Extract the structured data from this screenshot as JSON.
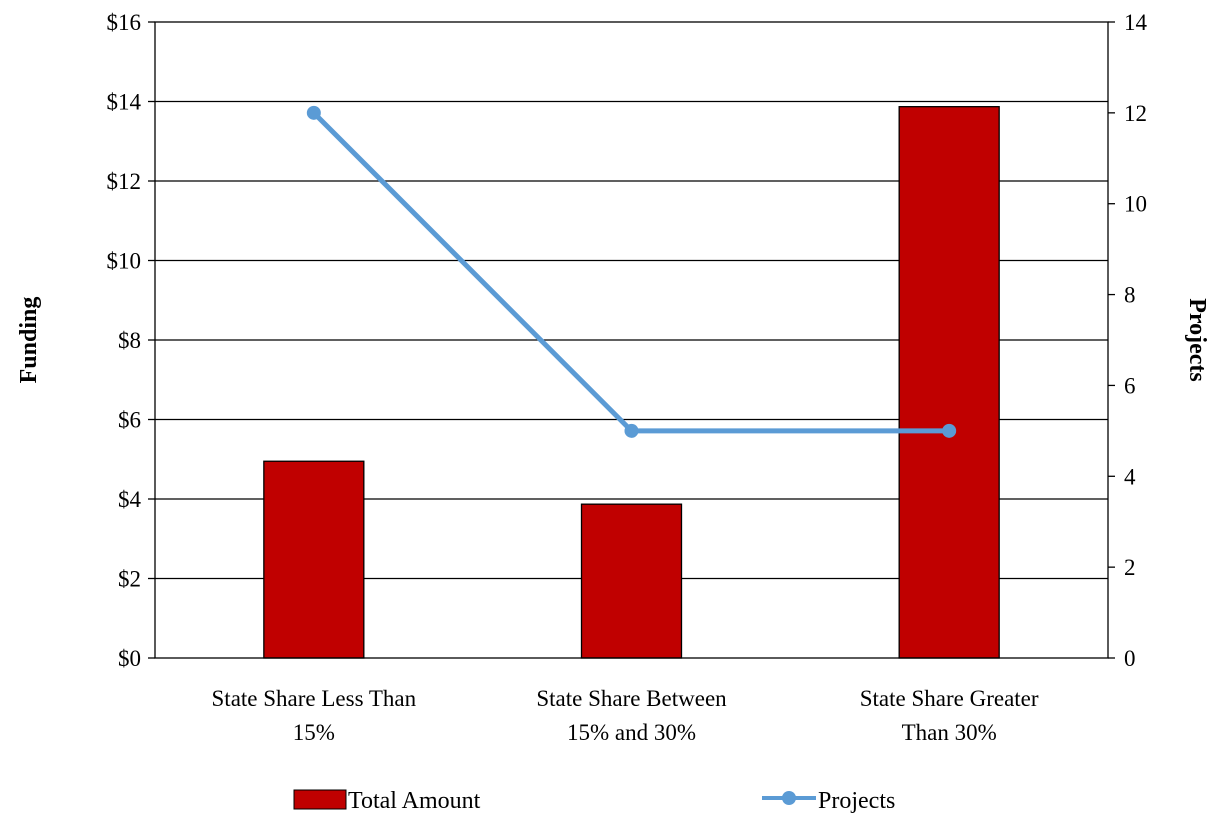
{
  "chart_data": {
    "type": "bar",
    "categories": [
      [
        "State Share Less Than",
        "15%"
      ],
      [
        "State Share Between",
        "15% and 30%"
      ],
      [
        "State Share Greater",
        "Than 30%"
      ]
    ],
    "series": [
      {
        "name": "Total Amount",
        "kind": "bar",
        "axis": "left",
        "color": "#C00000",
        "values": [
          4.95,
          3.87,
          13.87
        ]
      },
      {
        "name": "Projects",
        "kind": "line",
        "axis": "right",
        "color": "#5B9BD5",
        "values": [
          12,
          5,
          5
        ]
      }
    ],
    "y_left": {
      "label": "Funding",
      "min": 0,
      "max": 16,
      "step": 2,
      "tick_labels": [
        "$0",
        "$2",
        "$4",
        "$6",
        "$8",
        "$10",
        "$12",
        "$14",
        "$16"
      ]
    },
    "y_right": {
      "label": "Projects",
      "min": 0,
      "max": 14,
      "step": 2,
      "tick_labels": [
        "0",
        "2",
        "4",
        "6",
        "8",
        "10",
        "12",
        "14"
      ]
    },
    "grid": true,
    "legend": {
      "position": "bottom",
      "entries": [
        "Total Amount",
        "Projects"
      ]
    }
  }
}
